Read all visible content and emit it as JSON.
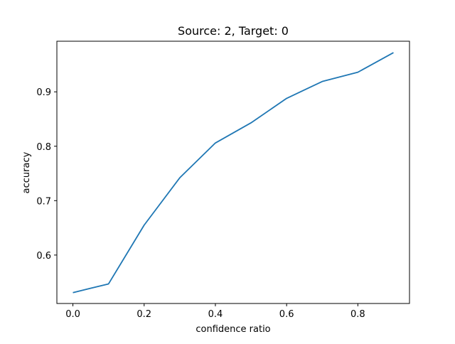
{
  "chart_data": {
    "type": "line",
    "title": "Source: 2, Target: 0",
    "xlabel": "confidence ratio",
    "ylabel": "accuracy",
    "x": [
      0.0,
      0.1,
      0.2,
      0.3,
      0.4,
      0.5,
      0.6,
      0.7,
      0.8,
      0.9
    ],
    "series": [
      {
        "values": [
          0.531,
          0.547,
          0.655,
          0.742,
          0.806,
          0.843,
          0.888,
          0.919,
          0.936,
          0.972
        ],
        "color": "#1f77b4"
      }
    ],
    "xlim": [
      -0.045,
      0.945
    ],
    "ylim": [
      0.511,
      0.993
    ],
    "xticks": [
      0.0,
      0.2,
      0.4,
      0.6,
      0.8
    ],
    "xtick_labels": [
      "0.0",
      "0.2",
      "0.4",
      "0.6",
      "0.8"
    ],
    "yticks": [
      0.6,
      0.7,
      0.8,
      0.9
    ],
    "ytick_labels": [
      "0.6",
      "0.7",
      "0.8",
      "0.9"
    ],
    "grid": false,
    "legend": "none"
  }
}
